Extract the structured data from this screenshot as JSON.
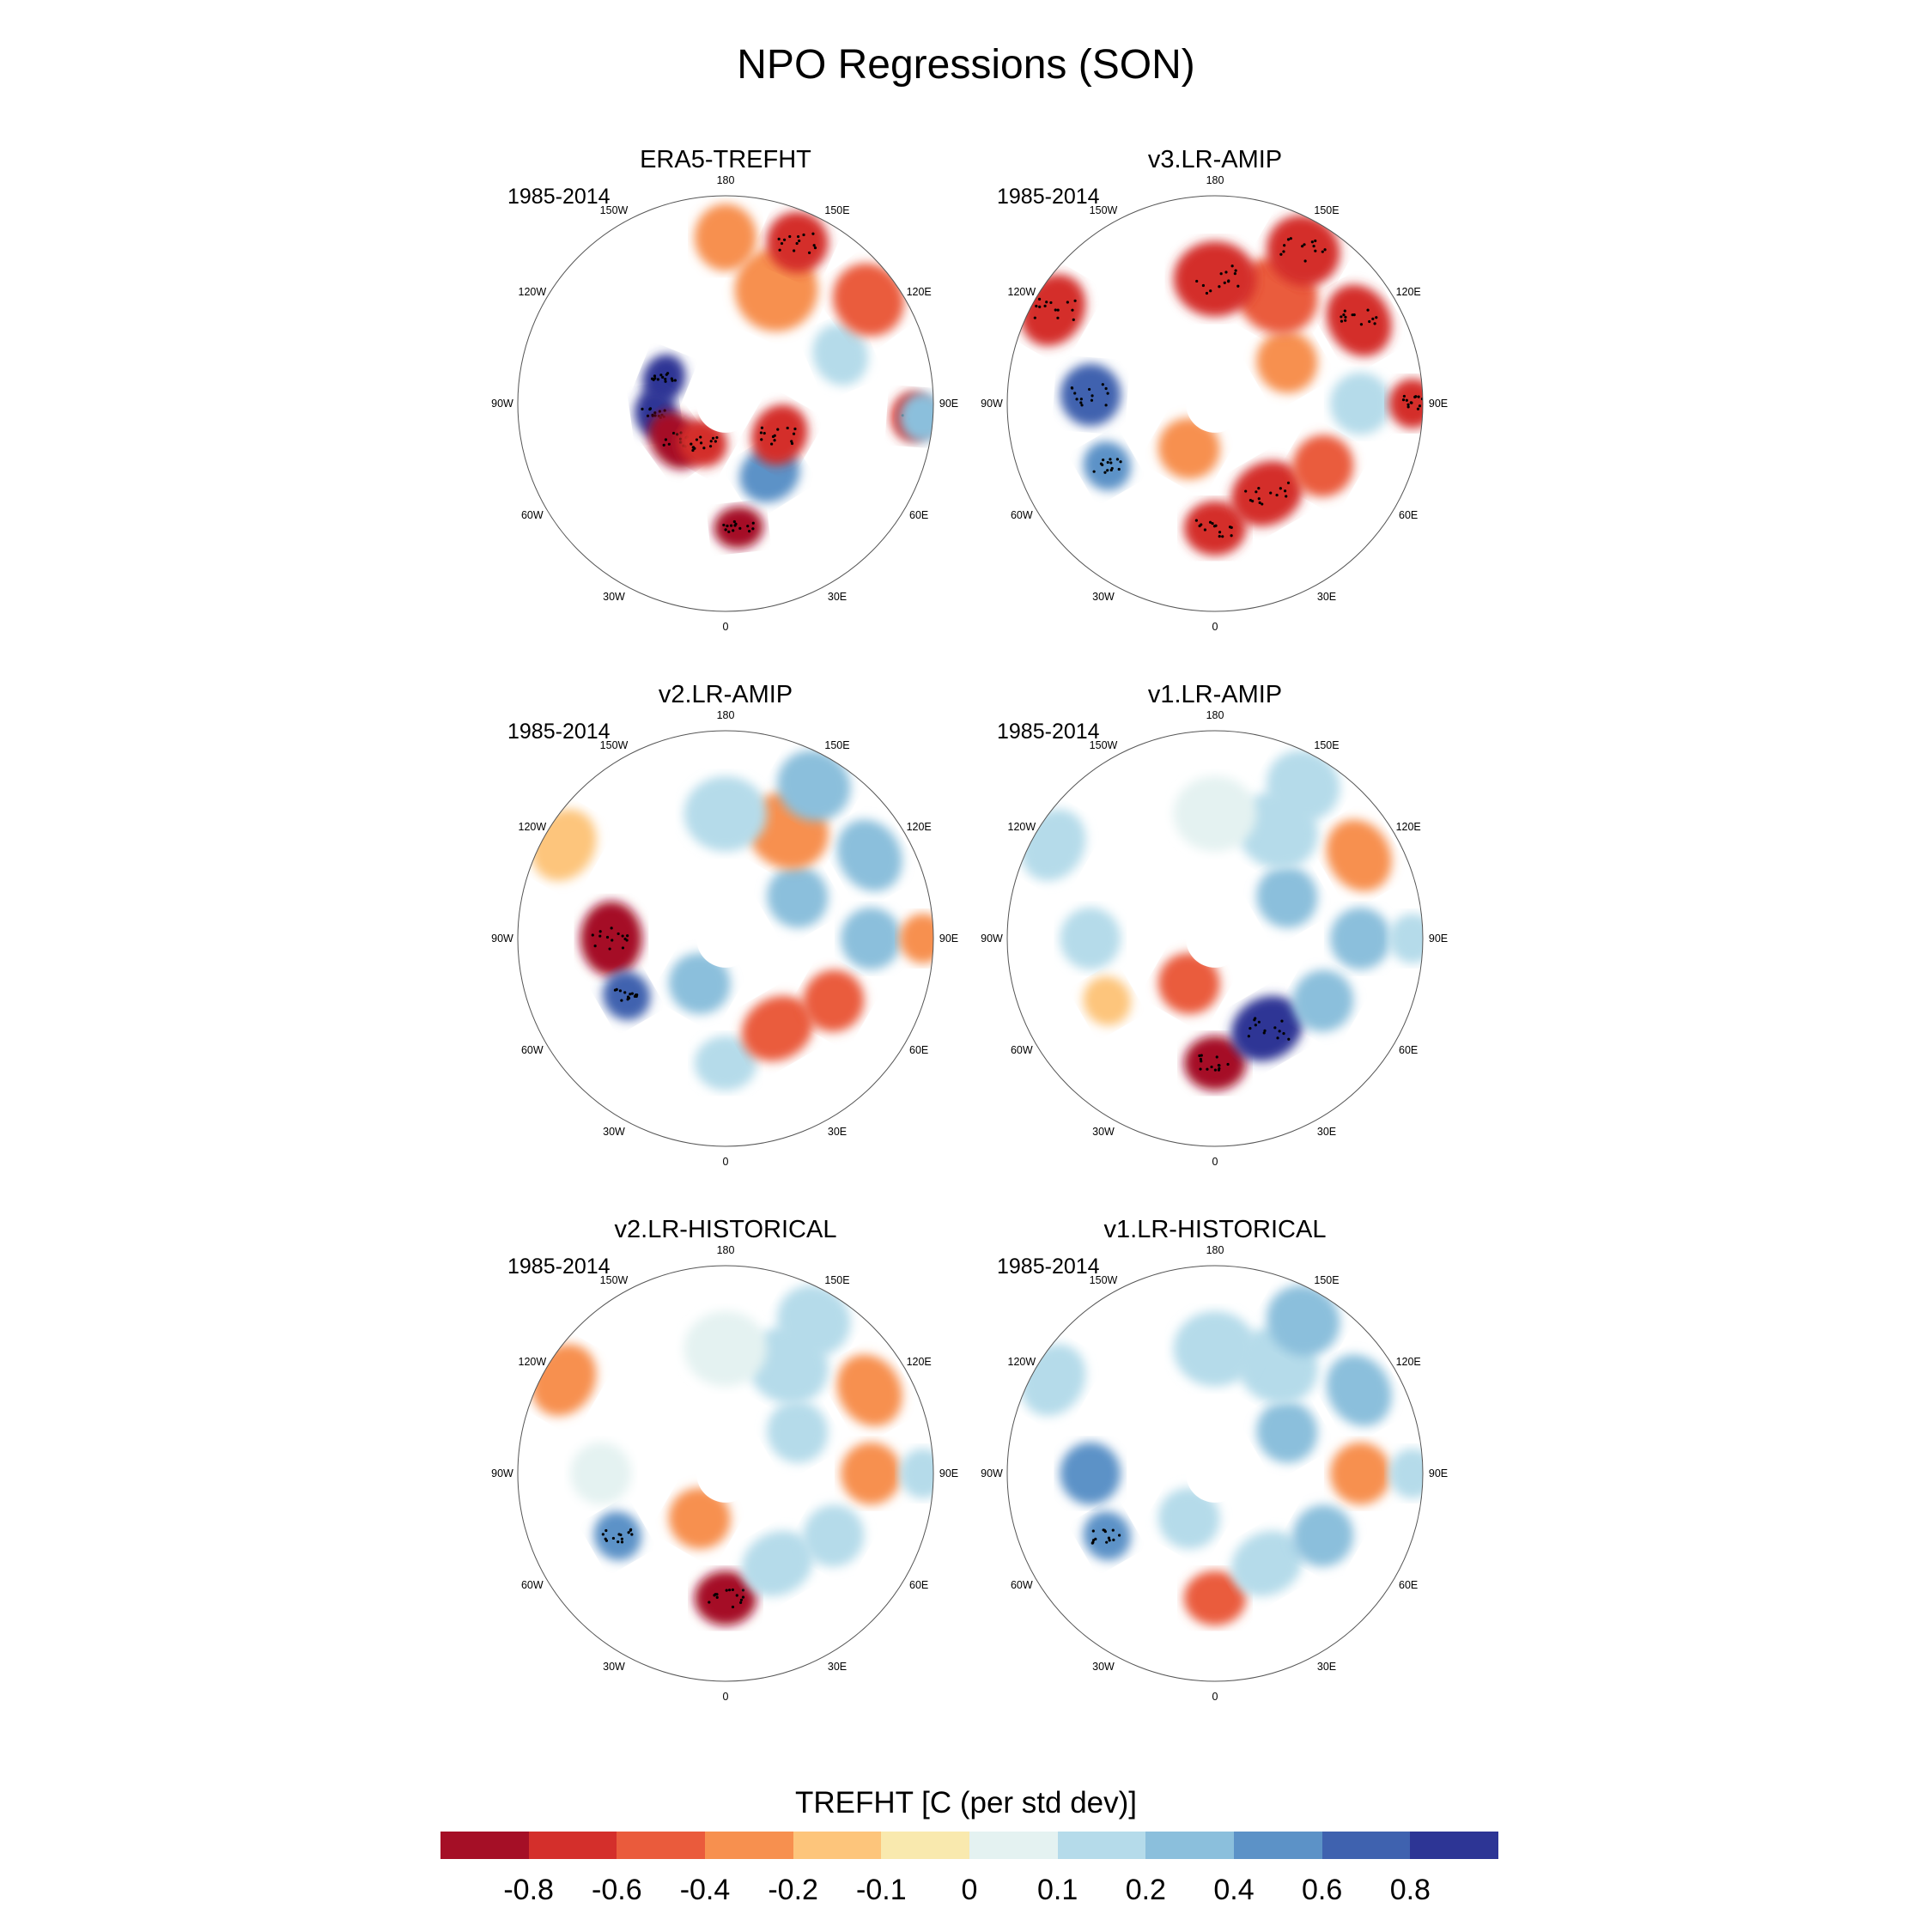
{
  "title": "NPO Regressions (SON)",
  "panels": [
    {
      "title": "ERA5-TREFHT",
      "period": "1985-2014",
      "pattern": [
        [
          -4,
          0.9,
          0.32,
          0.12,
          -0.85,
          0.5
        ],
        [
          -3,
          0.9,
          0.34,
          0.12,
          -0.85,
          0.5
        ],
        [
          -2,
          0.8,
          0.3,
          0.15,
          0.8,
          0.5
        ],
        [
          -1,
          0.5,
          0.22,
          0.12,
          0.7,
          0.6
        ],
        [
          0,
          0.8,
          0.6,
          0.12,
          1.0,
          0.5
        ],
        [
          1,
          0.6,
          0.4,
          0.15,
          -0.5,
          0.6
        ],
        [
          2,
          0.5,
          0.3,
          0.15,
          0.7,
          0.6
        ],
        [
          3,
          0.3,
          0.9,
          0.12,
          0.7,
          0.5
        ],
        [
          3,
          0.3,
          0.95,
          0.12,
          -0.3,
          0.6
        ],
        [
          4,
          0.15,
          0.6,
          0.15,
          -0.2,
          0.6
        ],
        [
          4,
          0.8,
          0.85,
          0.18,
          0.5,
          0.7
        ],
        [
          5,
          0.8,
          0.6,
          0.2,
          0.3,
          0.8
        ],
        [
          5,
          0.8,
          0.85,
          0.15,
          0.6,
          0.7
        ],
        [
          6,
          0.5,
          0.8,
          0.15,
          0.3,
          0.8
        ]
      ]
    },
    {
      "title": "v3.LR-AMIP",
      "period": "1985-2014",
      "pattern": [
        [
          -4,
          0.5,
          0.9,
          0.18,
          0.6,
          0.6
        ],
        [
          -3,
          0.3,
          0.6,
          0.15,
          -0.7,
          0.7
        ],
        [
          -2,
          0.5,
          0.6,
          0.12,
          -0.6,
          0.6
        ],
        [
          -1,
          0.5,
          0.25,
          0.15,
          0.3,
          0.7
        ],
        [
          0,
          0.5,
          0.6,
          0.15,
          0.7,
          0.6
        ],
        [
          1,
          0.5,
          0.5,
          0.18,
          0.75,
          0.6
        ],
        [
          2,
          0.5,
          0.6,
          0.15,
          0.5,
          0.7
        ],
        [
          3,
          0.5,
          0.7,
          0.15,
          -0.2,
          0.7
        ],
        [
          3,
          0.5,
          0.95,
          0.12,
          0.6,
          0.6
        ],
        [
          4,
          0.5,
          0.8,
          0.18,
          0.6,
          0.6
        ],
        [
          4,
          0.5,
          0.4,
          0.15,
          0.3,
          0.7
        ],
        [
          5,
          0.5,
          0.6,
          0.2,
          0.5,
          0.7
        ],
        [
          5,
          0.5,
          0.85,
          0.18,
          0.6,
          0.7
        ],
        [
          6,
          0.5,
          0.6,
          0.2,
          0.6,
          0.7
        ]
      ]
    },
    {
      "title": "v2.LR-AMIP",
      "period": "1985-2014",
      "pattern": [
        [
          -4,
          0.5,
          0.9,
          0.18,
          0.1,
          0.6
        ],
        [
          -3,
          0.5,
          0.55,
          0.18,
          0.9,
          0.6
        ],
        [
          -2,
          0.5,
          0.55,
          0.12,
          -0.7,
          0.6
        ],
        [
          -1,
          0.5,
          0.25,
          0.15,
          -0.3,
          0.7
        ],
        [
          0,
          0.5,
          0.6,
          0.15,
          -0.2,
          0.6
        ],
        [
          1,
          0.5,
          0.5,
          0.18,
          0.4,
          0.6
        ],
        [
          2,
          0.5,
          0.6,
          0.15,
          0.4,
          0.7
        ],
        [
          3,
          0.5,
          0.7,
          0.15,
          -0.4,
          0.7
        ],
        [
          3,
          0.5,
          0.95,
          0.12,
          0.3,
          0.6
        ],
        [
          4,
          0.5,
          0.8,
          0.18,
          -0.4,
          0.6
        ],
        [
          4,
          0.5,
          0.4,
          0.15,
          -0.3,
          0.7
        ],
        [
          5,
          0.5,
          0.6,
          0.2,
          0.2,
          0.7
        ],
        [
          5,
          0.5,
          0.85,
          0.18,
          -0.3,
          0.7
        ],
        [
          6,
          0.5,
          0.6,
          0.2,
          -0.2,
          0.7
        ]
      ]
    },
    {
      "title": "v1.LR-AMIP",
      "period": "1985-2014",
      "pattern": [
        [
          -4,
          0.5,
          0.9,
          0.18,
          -0.2,
          0.6
        ],
        [
          -3,
          0.5,
          0.6,
          0.15,
          -0.2,
          0.7
        ],
        [
          -2,
          0.5,
          0.6,
          0.12,
          0.1,
          0.6
        ],
        [
          -1,
          0.5,
          0.25,
          0.15,
          0.4,
          0.7
        ],
        [
          0,
          0.5,
          0.6,
          0.15,
          0.8,
          0.6
        ],
        [
          1,
          0.5,
          0.5,
          0.18,
          -0.9,
          0.6
        ],
        [
          2,
          0.5,
          0.6,
          0.15,
          -0.3,
          0.7
        ],
        [
          3,
          0.5,
          0.7,
          0.15,
          -0.3,
          0.7
        ],
        [
          3,
          0.5,
          0.95,
          0.12,
          -0.2,
          0.6
        ],
        [
          4,
          0.5,
          0.8,
          0.18,
          0.2,
          0.6
        ],
        [
          4,
          0.5,
          0.4,
          0.15,
          -0.3,
          0.7
        ],
        [
          5,
          0.5,
          0.6,
          0.2,
          -0.2,
          0.7
        ],
        [
          5,
          0.5,
          0.85,
          0.18,
          -0.2,
          0.7
        ],
        [
          6,
          0.5,
          0.6,
          0.2,
          -0.1,
          0.7
        ]
      ]
    },
    {
      "title": "v2.LR-HISTORICAL",
      "period": "1985-2014",
      "pattern": [
        [
          -4,
          0.5,
          0.9,
          0.18,
          0.2,
          0.6
        ],
        [
          -3,
          0.5,
          0.6,
          0.15,
          -0.1,
          0.7
        ],
        [
          -2,
          0.5,
          0.6,
          0.12,
          -0.6,
          0.6
        ],
        [
          -1,
          0.5,
          0.25,
          0.15,
          0.3,
          0.7
        ],
        [
          0,
          0.5,
          0.6,
          0.15,
          0.8,
          0.6
        ],
        [
          1,
          0.5,
          0.5,
          0.18,
          -0.2,
          0.6
        ],
        [
          2,
          0.5,
          0.6,
          0.15,
          -0.2,
          0.7
        ],
        [
          3,
          0.5,
          0.7,
          0.15,
          0.2,
          0.7
        ],
        [
          3,
          0.5,
          0.95,
          0.12,
          -0.2,
          0.6
        ],
        [
          4,
          0.5,
          0.8,
          0.18,
          0.2,
          0.6
        ],
        [
          4,
          0.5,
          0.4,
          0.15,
          -0.2,
          0.7
        ],
        [
          5,
          0.5,
          0.6,
          0.2,
          -0.2,
          0.7
        ],
        [
          5,
          0.5,
          0.85,
          0.18,
          -0.2,
          0.7
        ],
        [
          6,
          0.5,
          0.6,
          0.2,
          -0.1,
          0.7
        ]
      ]
    },
    {
      "title": "v1.LR-HISTORICAL",
      "period": "1985-2014",
      "pattern": [
        [
          -4,
          0.5,
          0.9,
          0.18,
          -0.2,
          0.6
        ],
        [
          -3,
          0.5,
          0.6,
          0.15,
          -0.5,
          0.7
        ],
        [
          -2,
          0.5,
          0.6,
          0.12,
          -0.6,
          0.6
        ],
        [
          -1,
          0.5,
          0.25,
          0.15,
          -0.2,
          0.7
        ],
        [
          0,
          0.5,
          0.6,
          0.15,
          0.5,
          0.6
        ],
        [
          1,
          0.5,
          0.5,
          0.18,
          -0.2,
          0.6
        ],
        [
          2,
          0.5,
          0.6,
          0.15,
          -0.3,
          0.7
        ],
        [
          3,
          0.5,
          0.7,
          0.15,
          0.2,
          0.7
        ],
        [
          3,
          0.5,
          0.95,
          0.12,
          -0.2,
          0.6
        ],
        [
          4,
          0.5,
          0.8,
          0.18,
          -0.3,
          0.6
        ],
        [
          4,
          0.5,
          0.4,
          0.15,
          -0.4,
          0.7
        ],
        [
          5,
          0.5,
          0.6,
          0.2,
          -0.2,
          0.7
        ],
        [
          5,
          0.5,
          0.85,
          0.18,
          -0.3,
          0.7
        ],
        [
          6,
          0.5,
          0.6,
          0.2,
          -0.2,
          0.7
        ]
      ]
    }
  ],
  "longitude_labels": [
    {
      "text": "180",
      "lon": 180
    },
    {
      "text": "150E",
      "lon": 150
    },
    {
      "text": "120E",
      "lon": 120
    },
    {
      "text": "90E",
      "lon": 90
    },
    {
      "text": "60E",
      "lon": 60
    },
    {
      "text": "30E",
      "lon": 30
    },
    {
      "text": "0",
      "lon": 0
    },
    {
      "text": "30W",
      "lon": -30
    },
    {
      "text": "60W",
      "lon": -60
    },
    {
      "text": "90W",
      "lon": -90
    },
    {
      "text": "120W",
      "lon": -120
    },
    {
      "text": "150W",
      "lon": -150
    }
  ],
  "colorbar": {
    "title": "TREFHT [C (per std dev)]",
    "labels": [
      "-0.8",
      "-0.6",
      "-0.4",
      "-0.2",
      "-0.1",
      "0",
      "0.1",
      "0.2",
      "0.4",
      "0.6",
      "0.8"
    ],
    "colors": [
      "#a50f26",
      "#d42f2b",
      "#ea5b3c",
      "#f7904f",
      "#fdc57b",
      "#f9e9ae",
      "#e4f2f1",
      "#b5dbea",
      "#8bbfdc",
      "#5c92c7",
      "#3f62af",
      "#2d3595"
    ]
  }
}
